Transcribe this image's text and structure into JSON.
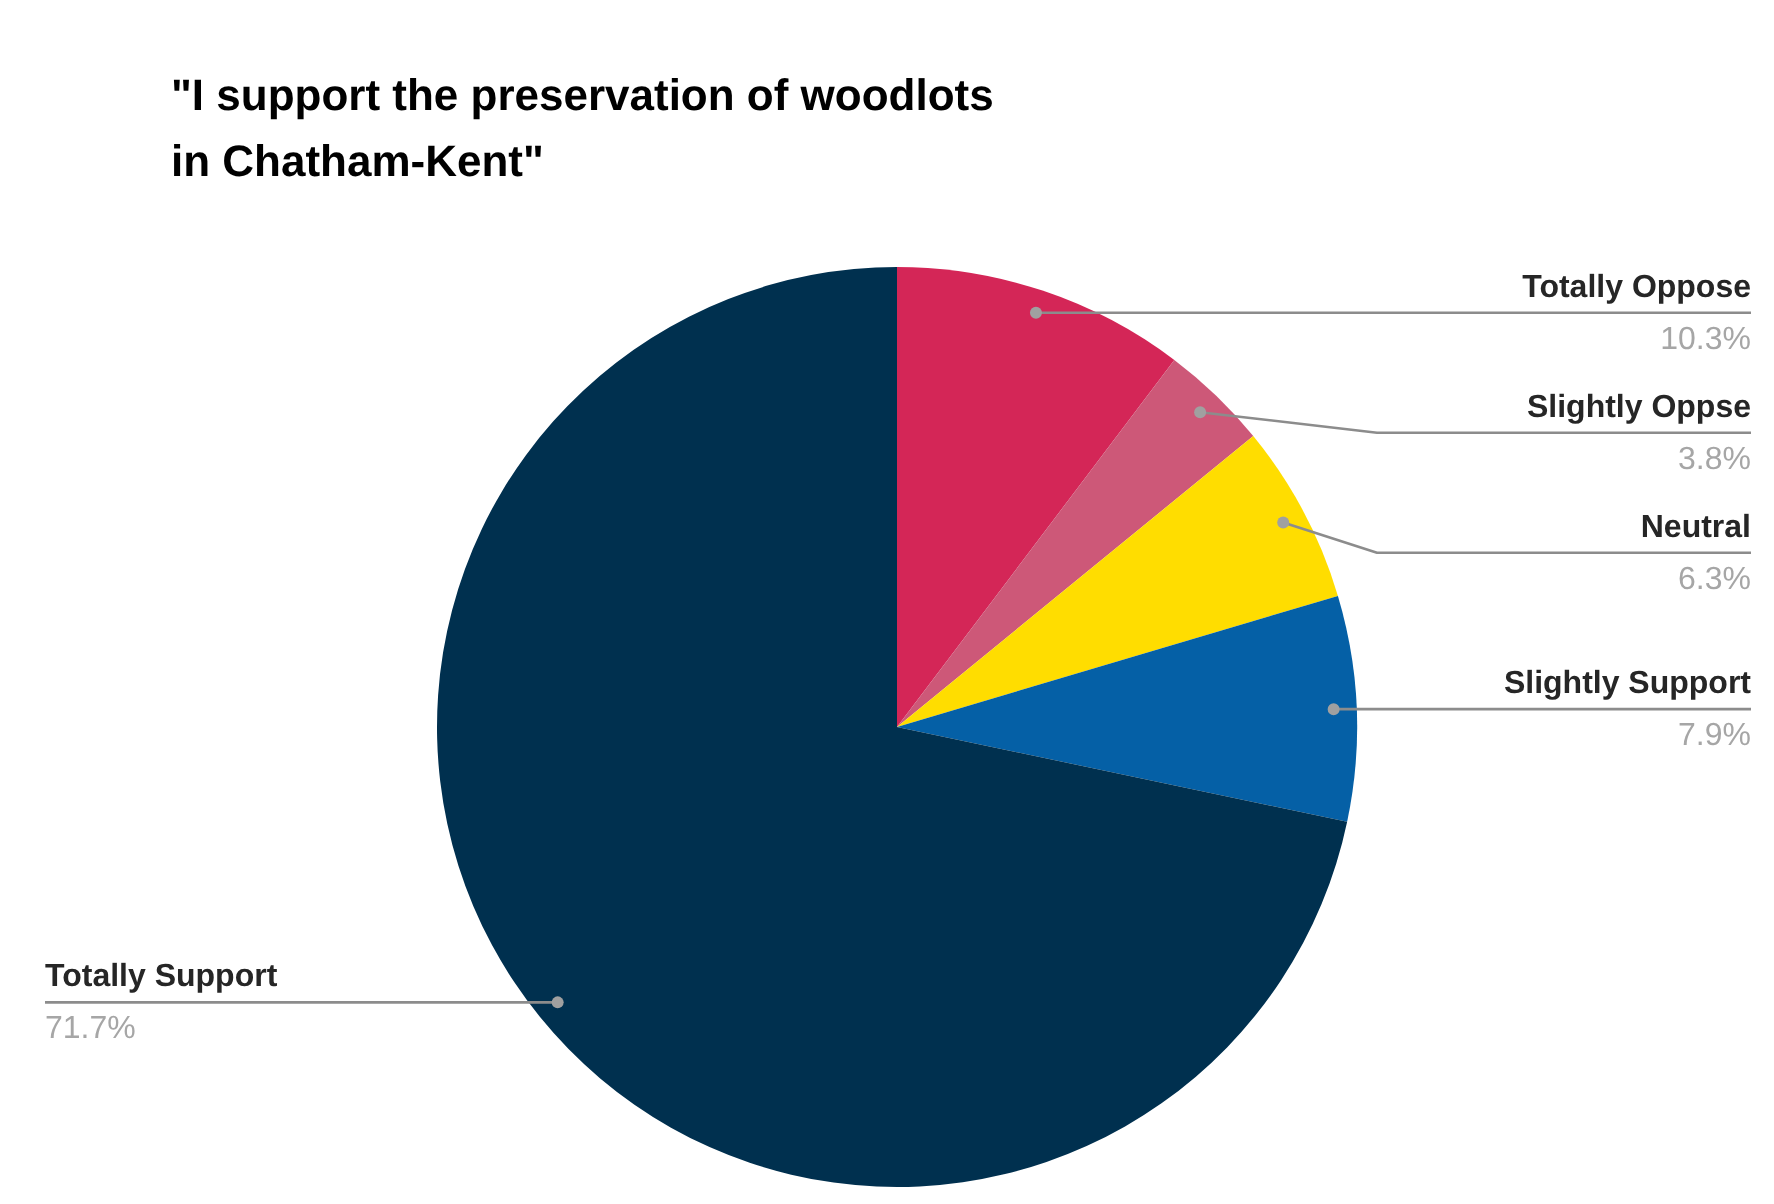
{
  "chart_data": {
    "type": "pie",
    "title": "\"I support the preservation of woodlots\nin Chatham-Kent\"",
    "categories": [
      "Totally Oppose",
      "Slightly Oppse",
      "Neutral",
      "Slightly Support",
      "Totally Support"
    ],
    "values": [
      10.3,
      3.8,
      6.3,
      7.9,
      71.7
    ],
    "colors": [
      "#d42657",
      "#cd5878",
      "#ffdd00",
      "#0560a6",
      "#00304f"
    ],
    "value_labels": [
      "10.3%",
      "3.8%",
      "6.3%",
      "7.9%",
      "71.7%"
    ]
  }
}
